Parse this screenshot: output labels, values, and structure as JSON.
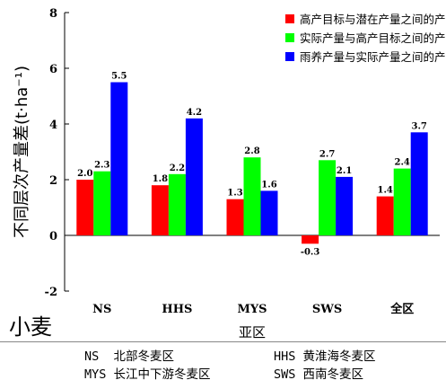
{
  "chart_data": {
    "type": "bar",
    "ylabel": "不同层次产量差(t·ha⁻¹)",
    "xlabel": "亚区",
    "crop_label": "小麦",
    "categories": [
      "NS",
      "HHS",
      "MYS",
      "SWS",
      "全区"
    ],
    "ylim": [
      -2,
      8
    ],
    "yticks": [
      "-2",
      "0",
      "2",
      "4",
      "6",
      "8"
    ],
    "legend_position": "top-right",
    "series": [
      {
        "name": "高产目标与潜在产量之间的产量差",
        "color": "#ff0000",
        "values": [
          2.0,
          1.8,
          1.3,
          -0.3,
          1.4
        ],
        "labels": [
          "2.0",
          "1.8",
          "1.3",
          "-0.3",
          "1.4"
        ]
      },
      {
        "name": "实际产量与高产目标之间的产量差",
        "color": "#00ff00",
        "values": [
          2.3,
          2.2,
          2.8,
          2.7,
          2.4
        ],
        "labels": [
          "2.3",
          "2.2",
          "2.8",
          "2.7",
          "2.4"
        ]
      },
      {
        "name": "雨养产量与实际产量之间的产量差",
        "color": "#0000ff",
        "values": [
          5.5,
          4.2,
          1.6,
          2.1,
          3.7
        ],
        "labels": [
          "5.5",
          "4.2",
          "1.6",
          "2.1",
          "3.7"
        ]
      }
    ]
  },
  "notes": {
    "ns": "NS  北部冬麦区",
    "hhs": "HHS 黄淮海冬麦区",
    "mys": "MYS 长江中下游冬麦区",
    "sws": "SWS 西南冬麦区"
  }
}
